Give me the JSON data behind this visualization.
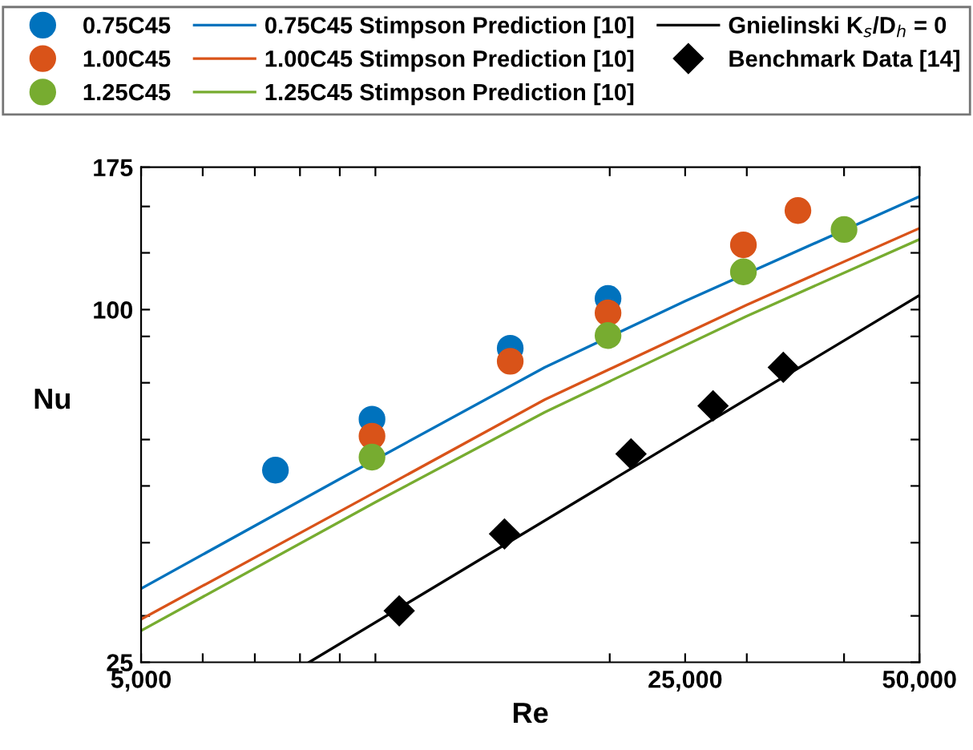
{
  "chart_data": {
    "type": "scatter",
    "xlabel": "Re",
    "ylabel": "Nu",
    "log": "xy",
    "legend": "top",
    "grid": false,
    "xlim": [
      5000,
      50000
    ],
    "ylim": [
      25,
      175
    ],
    "xticks": [
      {
        "value": 5000,
        "label": "5,000"
      },
      {
        "value": 6000,
        "label": null
      },
      {
        "value": 7000,
        "label": null
      },
      {
        "value": 8000,
        "label": null
      },
      {
        "value": 9000,
        "label": null
      },
      {
        "value": 10000,
        "label": null
      },
      {
        "value": 20000,
        "label": null
      },
      {
        "value": 25000,
        "label": "25,000"
      },
      {
        "value": 30000,
        "label": null
      },
      {
        "value": 40000,
        "label": null
      },
      {
        "value": 50000,
        "label": "50,000"
      }
    ],
    "yticks": [
      25,
      {
        "value": 30,
        "label": null
      },
      {
        "value": 40,
        "label": null
      },
      {
        "value": 50,
        "label": null
      },
      {
        "value": 60,
        "label": null
      },
      {
        "value": 75,
        "label": null
      },
      {
        "value": 90,
        "label": null
      },
      100,
      {
        "value": 125,
        "label": null
      },
      {
        "value": 150,
        "label": null
      },
      175
    ],
    "series": [
      {
        "name": "0.75C45",
        "marker": "circle",
        "color": "#0072bd",
        "x": [
          7440,
          9900,
          14900,
          19900
        ],
        "values": [
          53.2,
          65,
          85.9,
          104.5
        ]
      },
      {
        "name": "1.00C45",
        "marker": "circle",
        "color": "#d95319",
        "x": [
          9900,
          14900,
          19900,
          29700,
          34900
        ],
        "values": [
          60.8,
          81.6,
          98.7,
          129,
          147.6
        ]
      },
      {
        "name": "1.25C45",
        "marker": "circle",
        "color": "#77ac30",
        "x": [
          9900,
          19900,
          29700,
          40000
        ],
        "values": [
          56,
          90.3,
          116,
          137
        ]
      },
      {
        "name": "0.75C45 Stimpson Prediction [10]",
        "type": "line",
        "marker": "none",
        "line_style": "solid",
        "color": "#0072bd",
        "x": [
          5000,
          9000,
          16500,
          25000,
          50000
        ],
        "values": [
          33.4,
          51.4,
          79.7,
          103.4,
          156
        ]
      },
      {
        "name": "1.00C45 Stimpson Prediction [10]",
        "type": "line",
        "marker": "none",
        "line_style": "solid",
        "color": "#d95319",
        "x": [
          5000,
          10000,
          16500,
          30000,
          50000
        ],
        "values": [
          29.6,
          48.8,
          70.2,
          101.9,
          137.7
        ]
      },
      {
        "name": "1.25C45 Stimpson Prediction [10]",
        "type": "line",
        "marker": "none",
        "line_style": "solid",
        "color": "#77ac30",
        "x": [
          5000,
          10000,
          16500,
          30000,
          50000
        ],
        "values": [
          28.3,
          46.9,
          66.8,
          97.5,
          131.8
        ]
      },
      {
        "name": "Gnielinski K$_{s}$/D$_{h}$ = 0",
        "type": "line",
        "marker": "none",
        "line_style": "solid",
        "color": "#000000",
        "x": [
          8220,
          50000
        ],
        "values": [
          25,
          105.8
        ]
      },
      {
        "name": "Benchmark Data [14]",
        "marker": "diamond",
        "color": "#000000",
        "x": [
          10730,
          14650,
          21300,
          27150,
          33420
        ],
        "values": [
          30.6,
          41.4,
          56.7,
          68.5,
          79.7
        ]
      }
    ]
  }
}
